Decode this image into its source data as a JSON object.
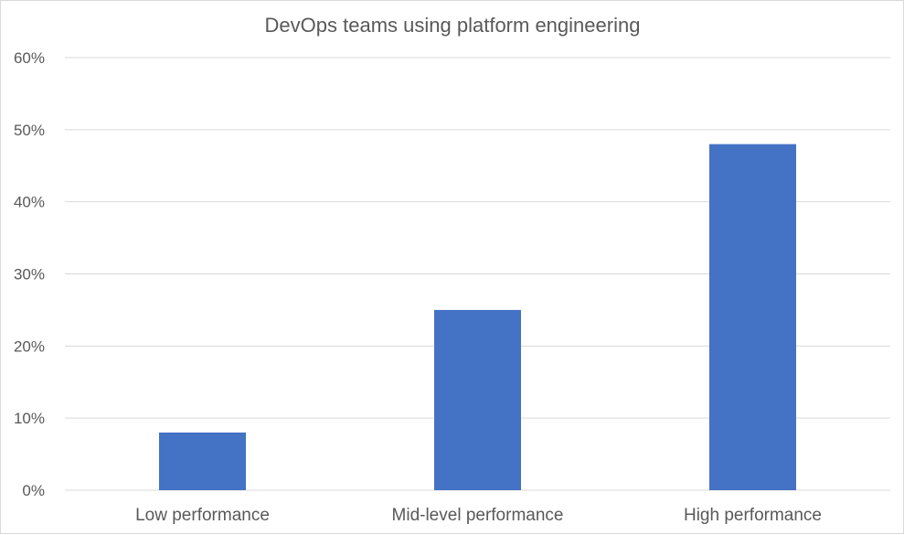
{
  "chart_data": {
    "type": "bar",
    "title": "DevOps teams using platform engineering",
    "categories": [
      "Low performance",
      "Mid-level performance",
      "High performance"
    ],
    "values": [
      8,
      25,
      48
    ],
    "value_format": "percent",
    "xlabel": "",
    "ylabel": "",
    "ylim": [
      0,
      60
    ],
    "yticks": [
      0,
      10,
      20,
      30,
      40,
      50,
      60
    ],
    "ytick_labels": [
      "0%",
      "10%",
      "20%",
      "30%",
      "40%",
      "50%",
      "60%"
    ],
    "grid": true,
    "legend": "none",
    "colors": {
      "bar": "#4472C4",
      "grid": "#D9D9D9",
      "text": "#595959"
    }
  }
}
